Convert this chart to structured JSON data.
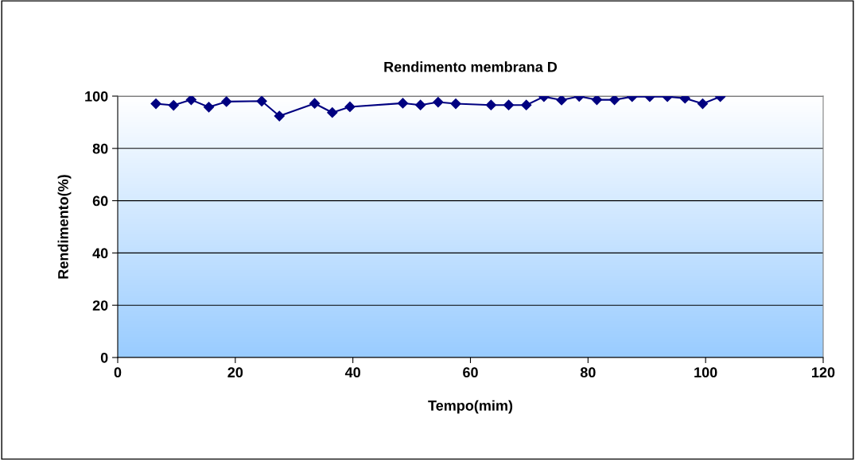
{
  "chart_data": {
    "type": "line",
    "title": "Rendimento membrana D",
    "xlabel": "Tempo(mim)",
    "ylabel": "Rendimento(%)",
    "x": [
      6.5,
      9.5,
      12.5,
      15.5,
      18.5,
      24.5,
      27.5,
      33.5,
      36.5,
      39.5,
      48.5,
      51.5,
      54.5,
      57.5,
      63.5,
      66.5,
      69.5,
      72.5,
      75.5,
      78.5,
      81.5,
      84.5,
      87.5,
      90.5,
      93.5,
      96.5,
      99.5,
      102.5
    ],
    "series": [
      {
        "color": "#000080",
        "values": [
          97.1,
          96.5,
          98.6,
          95.8,
          97.9,
          98.1,
          92.4,
          97.2,
          93.7,
          95.9,
          97.3,
          96.6,
          97.7,
          97.1,
          96.6,
          96.6,
          96.6,
          99.8,
          98.5,
          99.9,
          98.6,
          98.6,
          99.8,
          99.8,
          99.8,
          99.2,
          97.1,
          99.8
        ]
      }
    ],
    "xlim": [
      0,
      120
    ],
    "xticks": [
      0,
      20,
      40,
      60,
      80,
      100,
      120
    ],
    "ylim": [
      0,
      100
    ],
    "yticks": [
      0,
      20,
      40,
      60,
      80,
      100
    ],
    "grid": "y",
    "marker": "diamond",
    "line_style": "solid",
    "legend": false
  }
}
